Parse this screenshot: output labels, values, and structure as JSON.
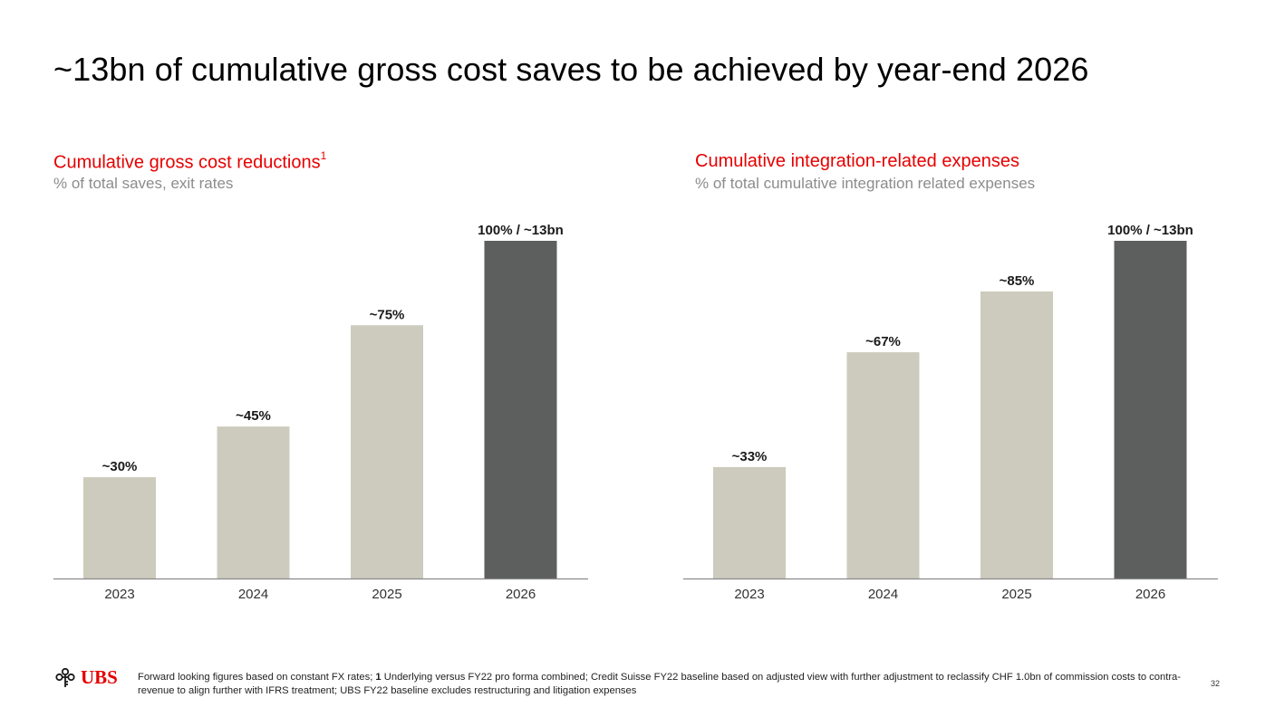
{
  "title": "~13bn of cumulative gross cost saves to be achieved by year-end 2026",
  "left_panel": {
    "title": "Cumulative gross cost reductions",
    "title_sup": "1",
    "subtitle": "% of total saves, exit rates"
  },
  "right_panel": {
    "title": "Cumulative integration-related expenses",
    "subtitle": "% of total cumulative integration related expenses"
  },
  "colors": {
    "accent": "#e60000",
    "bar_light": "#cccbbd",
    "bar_dark": "#5d5f5e",
    "axis": "#8a8a8a"
  },
  "chart_data": [
    {
      "type": "bar",
      "title": "Cumulative gross cost reductions",
      "subtitle": "% of total saves, exit rates",
      "categories": [
        "2023",
        "2024",
        "2025",
        "2026"
      ],
      "values": [
        30,
        45,
        75,
        100
      ],
      "data_labels": [
        "~30%",
        "~45%",
        "~75%",
        "100% / ~13bn"
      ],
      "highlight_index": 3,
      "ylim": [
        0,
        100
      ],
      "xlabel": "",
      "ylabel": "",
      "grid": false
    },
    {
      "type": "bar",
      "title": "Cumulative integration-related expenses",
      "subtitle": "% of total cumulative integration related expenses",
      "categories": [
        "2023",
        "2024",
        "2025",
        "2026"
      ],
      "values": [
        33,
        67,
        85,
        100
      ],
      "data_labels": [
        "~33%",
        "~67%",
        "~85%",
        "100% / ~13bn"
      ],
      "highlight_index": 3,
      "ylim": [
        0,
        100
      ],
      "xlabel": "",
      "ylabel": "",
      "grid": false
    }
  ],
  "footer": {
    "logo_text": "UBS",
    "logo_icon": "keys-icon",
    "note_pre": "Forward looking figures based on constant FX rates; ",
    "note_marker": "1",
    "note_post": " Underlying versus FY22 pro forma combined; Credit Suisse FY22 baseline based on adjusted view with further adjustment to reclassify CHF 1.0bn of commission costs to contra-revenue to align further with IFRS treatment; UBS FY22 baseline excludes restructuring  and litigation expenses",
    "page_number": "32"
  }
}
